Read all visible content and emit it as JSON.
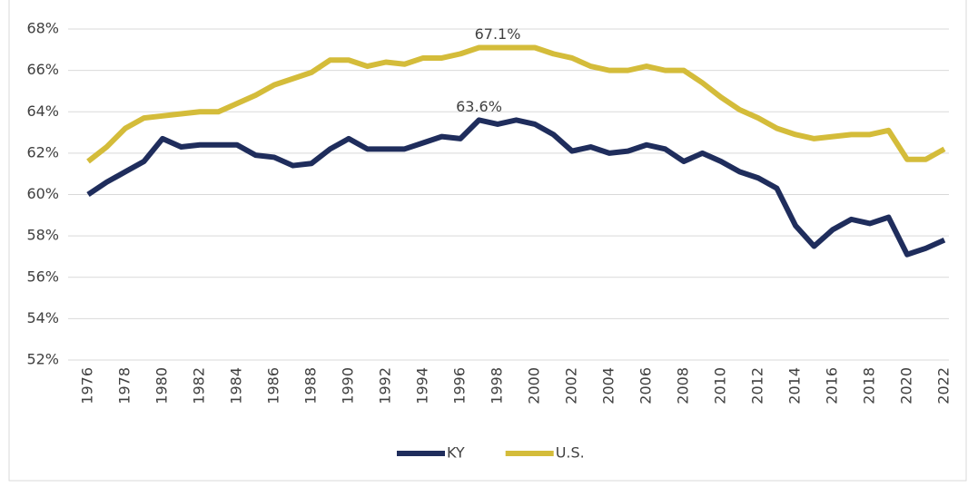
{
  "chart_data": {
    "type": "line",
    "x": [
      1976,
      1977,
      1978,
      1979,
      1980,
      1981,
      1982,
      1983,
      1984,
      1985,
      1986,
      1987,
      1988,
      1989,
      1990,
      1991,
      1992,
      1993,
      1994,
      1995,
      1996,
      1997,
      1998,
      1999,
      2000,
      2001,
      2002,
      2003,
      2004,
      2005,
      2006,
      2007,
      2008,
      2009,
      2010,
      2011,
      2012,
      2013,
      2014,
      2015,
      2016,
      2017,
      2018,
      2019,
      2020,
      2021,
      2022
    ],
    "series": [
      {
        "name": "KY",
        "color": "#1f2d5c",
        "values": [
          60.0,
          60.6,
          61.1,
          61.6,
          62.7,
          62.3,
          62.4,
          62.4,
          62.4,
          61.9,
          61.8,
          61.4,
          61.5,
          62.2,
          62.7,
          62.2,
          62.2,
          62.2,
          62.5,
          62.8,
          62.7,
          63.6,
          63.4,
          63.6,
          63.4,
          62.9,
          62.1,
          62.3,
          62.0,
          62.1,
          62.4,
          62.2,
          61.6,
          62.0,
          61.6,
          61.1,
          60.8,
          60.3,
          58.5,
          57.5,
          58.3,
          58.8,
          58.6,
          58.9,
          57.1,
          57.4,
          57.8
        ]
      },
      {
        "name": "U.S.",
        "color": "#d4bc3a",
        "values": [
          61.6,
          62.3,
          63.2,
          63.7,
          63.8,
          63.9,
          64.0,
          64.0,
          64.4,
          64.8,
          65.3,
          65.6,
          65.9,
          66.5,
          66.5,
          66.2,
          66.4,
          66.3,
          66.6,
          66.6,
          66.8,
          67.1,
          67.1,
          67.1,
          67.1,
          66.8,
          66.6,
          66.2,
          66.0,
          66.0,
          66.2,
          66.0,
          66.0,
          65.4,
          64.7,
          64.1,
          63.7,
          63.2,
          62.9,
          62.7,
          62.8,
          62.9,
          62.9,
          63.1,
          61.7,
          61.7,
          62.2
        ]
      }
    ],
    "annotations": [
      {
        "x": 1998,
        "y": 67.1,
        "label": "67.1%"
      },
      {
        "x": 1997,
        "y": 63.6,
        "label": "63.6%"
      }
    ],
    "xlim": [
      1976,
      2022
    ],
    "xticks": [
      1976,
      1978,
      1980,
      1982,
      1984,
      1986,
      1988,
      1990,
      1992,
      1994,
      1996,
      1998,
      2000,
      2002,
      2004,
      2006,
      2008,
      2010,
      2012,
      2014,
      2016,
      2018,
      2020,
      2022
    ],
    "ylim": [
      52,
      68
    ],
    "yticks": [
      {
        "value": 52,
        "label": "52%"
      },
      {
        "value": 54,
        "label": "54%"
      },
      {
        "value": 56,
        "label": "56%"
      },
      {
        "value": 58,
        "label": "58%"
      },
      {
        "value": 60,
        "label": "60%"
      },
      {
        "value": 62,
        "label": "62%"
      },
      {
        "value": 64,
        "label": "64%"
      },
      {
        "value": 66,
        "label": "66%"
      },
      {
        "value": 68,
        "label": "68%"
      }
    ],
    "grid": true,
    "legend": "bottom"
  }
}
